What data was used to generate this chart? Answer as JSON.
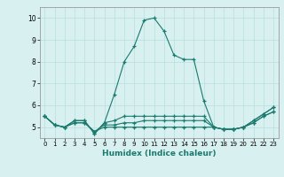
{
  "title": "",
  "xlabel": "Humidex (Indice chaleur)",
  "ylabel": "",
  "background_color": "#d8f0f0",
  "line_color": "#1a7a6e",
  "grid_color": "#b8dede",
  "xlim": [
    -0.5,
    23.5
  ],
  "ylim": [
    4.5,
    10.5
  ],
  "yticks": [
    5,
    6,
    7,
    8,
    9,
    10
  ],
  "xticks": [
    0,
    1,
    2,
    3,
    4,
    5,
    6,
    7,
    8,
    9,
    10,
    11,
    12,
    13,
    14,
    15,
    16,
    17,
    18,
    19,
    20,
    21,
    22,
    23
  ],
  "series": [
    [
      5.5,
      5.1,
      5.0,
      5.3,
      5.3,
      4.7,
      5.2,
      6.5,
      8.0,
      8.7,
      9.9,
      10.0,
      9.4,
      8.3,
      8.1,
      8.1,
      6.2,
      5.0,
      4.9,
      4.9,
      5.0,
      5.3,
      5.6,
      5.9
    ],
    [
      5.5,
      5.1,
      5.0,
      5.3,
      5.3,
      4.7,
      5.2,
      5.3,
      5.5,
      5.5,
      5.5,
      5.5,
      5.5,
      5.5,
      5.5,
      5.5,
      5.5,
      5.0,
      4.9,
      4.9,
      5.0,
      5.3,
      5.6,
      5.9
    ],
    [
      5.5,
      5.1,
      5.0,
      5.2,
      5.2,
      4.8,
      5.1,
      5.1,
      5.2,
      5.2,
      5.3,
      5.3,
      5.3,
      5.3,
      5.3,
      5.3,
      5.3,
      5.0,
      4.9,
      4.9,
      5.0,
      5.2,
      5.5,
      5.7
    ],
    [
      5.5,
      5.1,
      5.0,
      5.2,
      5.2,
      4.8,
      5.0,
      5.0,
      5.0,
      5.0,
      5.0,
      5.0,
      5.0,
      5.0,
      5.0,
      5.0,
      5.0,
      5.0,
      4.9,
      4.9,
      5.0,
      5.2,
      5.5,
      5.7
    ]
  ]
}
